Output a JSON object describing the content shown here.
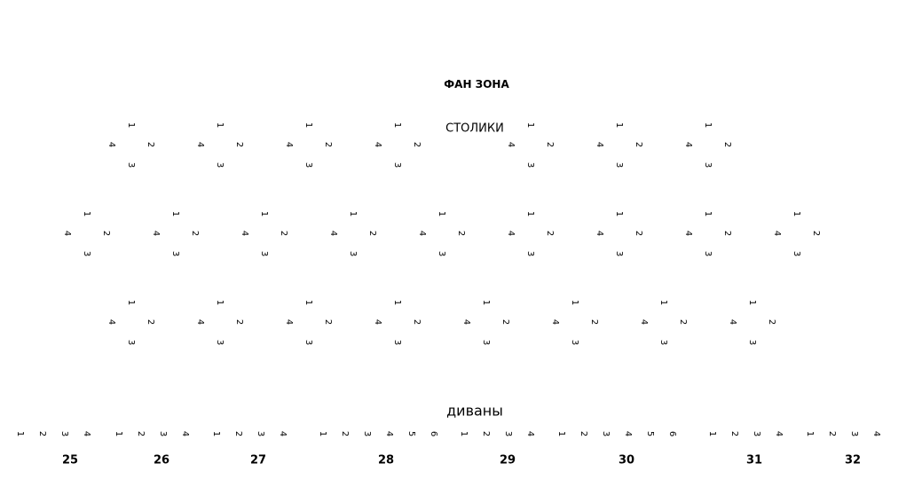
{
  "titles": {
    "fan_zone": "ФАН ЗОНА",
    "tables": "СТОЛИКИ",
    "sofas": "диваны"
  },
  "tables": {
    "rows": [
      {
        "count": 7,
        "seats": [
          "1",
          "2",
          "3",
          "4"
        ]
      },
      {
        "count": 9,
        "seats": [
          "1",
          "2",
          "3",
          "4"
        ]
      },
      {
        "count": 8,
        "seats": [
          "1",
          "2",
          "3",
          "4"
        ]
      }
    ]
  },
  "sofas": [
    {
      "label": "25",
      "seats": [
        "1",
        "2",
        "3",
        "4"
      ]
    },
    {
      "label": "26",
      "seats": [
        "1",
        "2",
        "3",
        "4"
      ]
    },
    {
      "label": "27",
      "seats": [
        "1",
        "2",
        "3",
        "4"
      ]
    },
    {
      "label": "28",
      "seats": [
        "1",
        "2",
        "3",
        "4",
        "5",
        "6"
      ]
    },
    {
      "label": "29",
      "seats": [
        "1",
        "2",
        "3",
        "4"
      ]
    },
    {
      "label": "30",
      "seats": [
        "1",
        "2",
        "3",
        "4",
        "5",
        "6"
      ]
    },
    {
      "label": "31",
      "seats": [
        "1",
        "2",
        "3",
        "4"
      ]
    },
    {
      "label": "32",
      "seats": [
        "1",
        "2",
        "3",
        "4"
      ]
    }
  ]
}
